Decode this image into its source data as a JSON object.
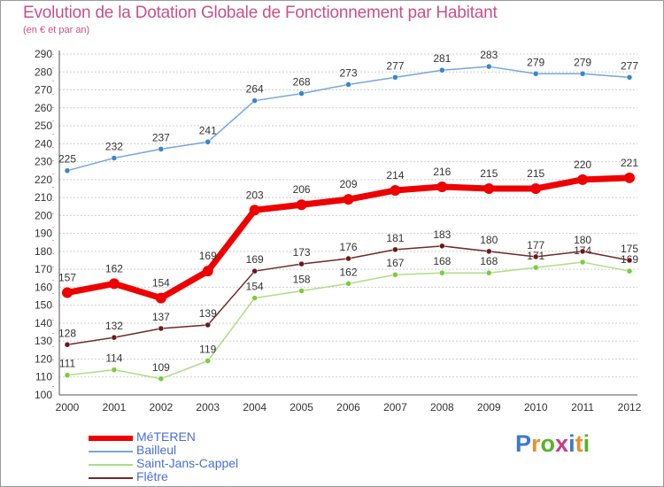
{
  "title": "Evolution de la Dotation Globale de Fonctionnement par Habitant",
  "subtitle": "(en € et par an)",
  "logo": {
    "text": "Proxiti",
    "letter_colors": [
      "#3a78d6",
      "#e8912a",
      "#5ab22a",
      "#c83a8a",
      "#3a78d6",
      "#e8912a",
      "#5ab22a"
    ]
  },
  "chart_data": {
    "type": "line",
    "title": "Evolution de la Dotation Globale de Fonctionnement par Habitant",
    "subtitle": "(en € et par an)",
    "x": [
      "2000",
      "2001",
      "2002",
      "2003",
      "2004",
      "2005",
      "2006",
      "2007",
      "2008",
      "2009",
      "2010",
      "2011",
      "2012"
    ],
    "ylim": [
      100,
      290
    ],
    "yticks": [
      100,
      110,
      120,
      130,
      140,
      150,
      160,
      170,
      180,
      190,
      200,
      210,
      220,
      230,
      240,
      250,
      260,
      270,
      280,
      290
    ],
    "grid": "horizontal",
    "legend_position": "bottom-left",
    "series": [
      {
        "name": "MéTEREN",
        "color": "#ee0000",
        "marker": "#ee0000",
        "highlight": true,
        "values": [
          157,
          162,
          154,
          169,
          203,
          206,
          209,
          214,
          216,
          215,
          215,
          220,
          221
        ]
      },
      {
        "name": "Bailleul",
        "color": "#76a6dc",
        "marker": "#3a86c8",
        "highlight": false,
        "values": [
          225,
          232,
          237,
          241,
          264,
          268,
          273,
          277,
          281,
          283,
          279,
          279,
          277
        ]
      },
      {
        "name": "Saint-Jans-Cappel",
        "color": "#aedd86",
        "marker": "#7ccc3c",
        "highlight": false,
        "values": [
          111,
          114,
          109,
          119,
          154,
          158,
          162,
          167,
          168,
          168,
          171,
          174,
          169
        ]
      },
      {
        "name": "Flêtre",
        "color": "#6e2a2a",
        "marker": "#6a1a1a",
        "highlight": false,
        "values": [
          128,
          132,
          137,
          139,
          169,
          173,
          176,
          181,
          183,
          180,
          177,
          180,
          175
        ]
      }
    ]
  }
}
